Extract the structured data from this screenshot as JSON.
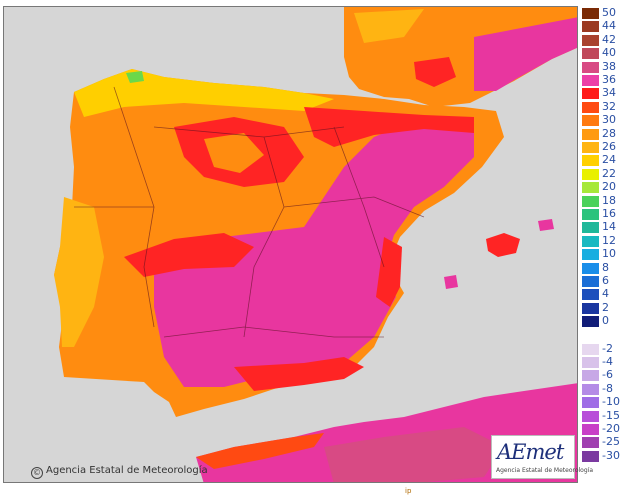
{
  "legend": {
    "warm": [
      {
        "label": "50",
        "color": "#7a2a05"
      },
      {
        "label": "44",
        "color": "#9b3a22"
      },
      {
        "label": "42",
        "color": "#a9422f"
      },
      {
        "label": "40",
        "color": "#c0485a"
      },
      {
        "label": "38",
        "color": "#d84a84"
      },
      {
        "label": "36",
        "color": "#ec3ea8"
      },
      {
        "label": "34",
        "color": "#ff1a1a"
      },
      {
        "label": "32",
        "color": "#ff4a12"
      },
      {
        "label": "30",
        "color": "#ff7a10"
      },
      {
        "label": "28",
        "color": "#ff9a10"
      },
      {
        "label": "26",
        "color": "#ffb412"
      },
      {
        "label": "24",
        "color": "#ffd000"
      },
      {
        "label": "22",
        "color": "#e9f000"
      },
      {
        "label": "20",
        "color": "#a6e83a"
      },
      {
        "label": "18",
        "color": "#4ad25a"
      },
      {
        "label": "16",
        "color": "#2bc37c"
      },
      {
        "label": "14",
        "color": "#20b89a"
      },
      {
        "label": "12",
        "color": "#1ab9c1"
      },
      {
        "label": "10",
        "color": "#18aee0"
      },
      {
        "label": "8",
        "color": "#1a8ee9"
      },
      {
        "label": "6",
        "color": "#1b6ed6"
      },
      {
        "label": "4",
        "color": "#1c4fbc"
      },
      {
        "label": "2",
        "color": "#1a36a0"
      },
      {
        "label": "0",
        "color": "#111d78"
      }
    ],
    "cold": [
      {
        "label": "-2",
        "color": "#e6d7ef"
      },
      {
        "label": "-4",
        "color": "#d8c2ea"
      },
      {
        "label": "-6",
        "color": "#c7a8e6"
      },
      {
        "label": "-8",
        "color": "#b48be6"
      },
      {
        "label": "-10",
        "color": "#9f6de6"
      },
      {
        "label": "-15",
        "color": "#b84fd9"
      },
      {
        "label": "-20",
        "color": "#c83fc7"
      },
      {
        "label": "-25",
        "color": "#a03fb0"
      },
      {
        "label": "-30",
        "color": "#7b3aa0"
      }
    ]
  },
  "credit": {
    "icon": "©",
    "text": "Agencia Estatal de Meteorología"
  },
  "logo": {
    "mark": "AEmet",
    "subtitle": "Agencia Estatal de Meteorología"
  },
  "bottom_mark": "ip",
  "colors": {
    "sea": "#d6d6d6",
    "hot": "#e8369f",
    "red": "#ff2424",
    "orange": "#ff8c10",
    "yellow": "#ffcf00"
  }
}
